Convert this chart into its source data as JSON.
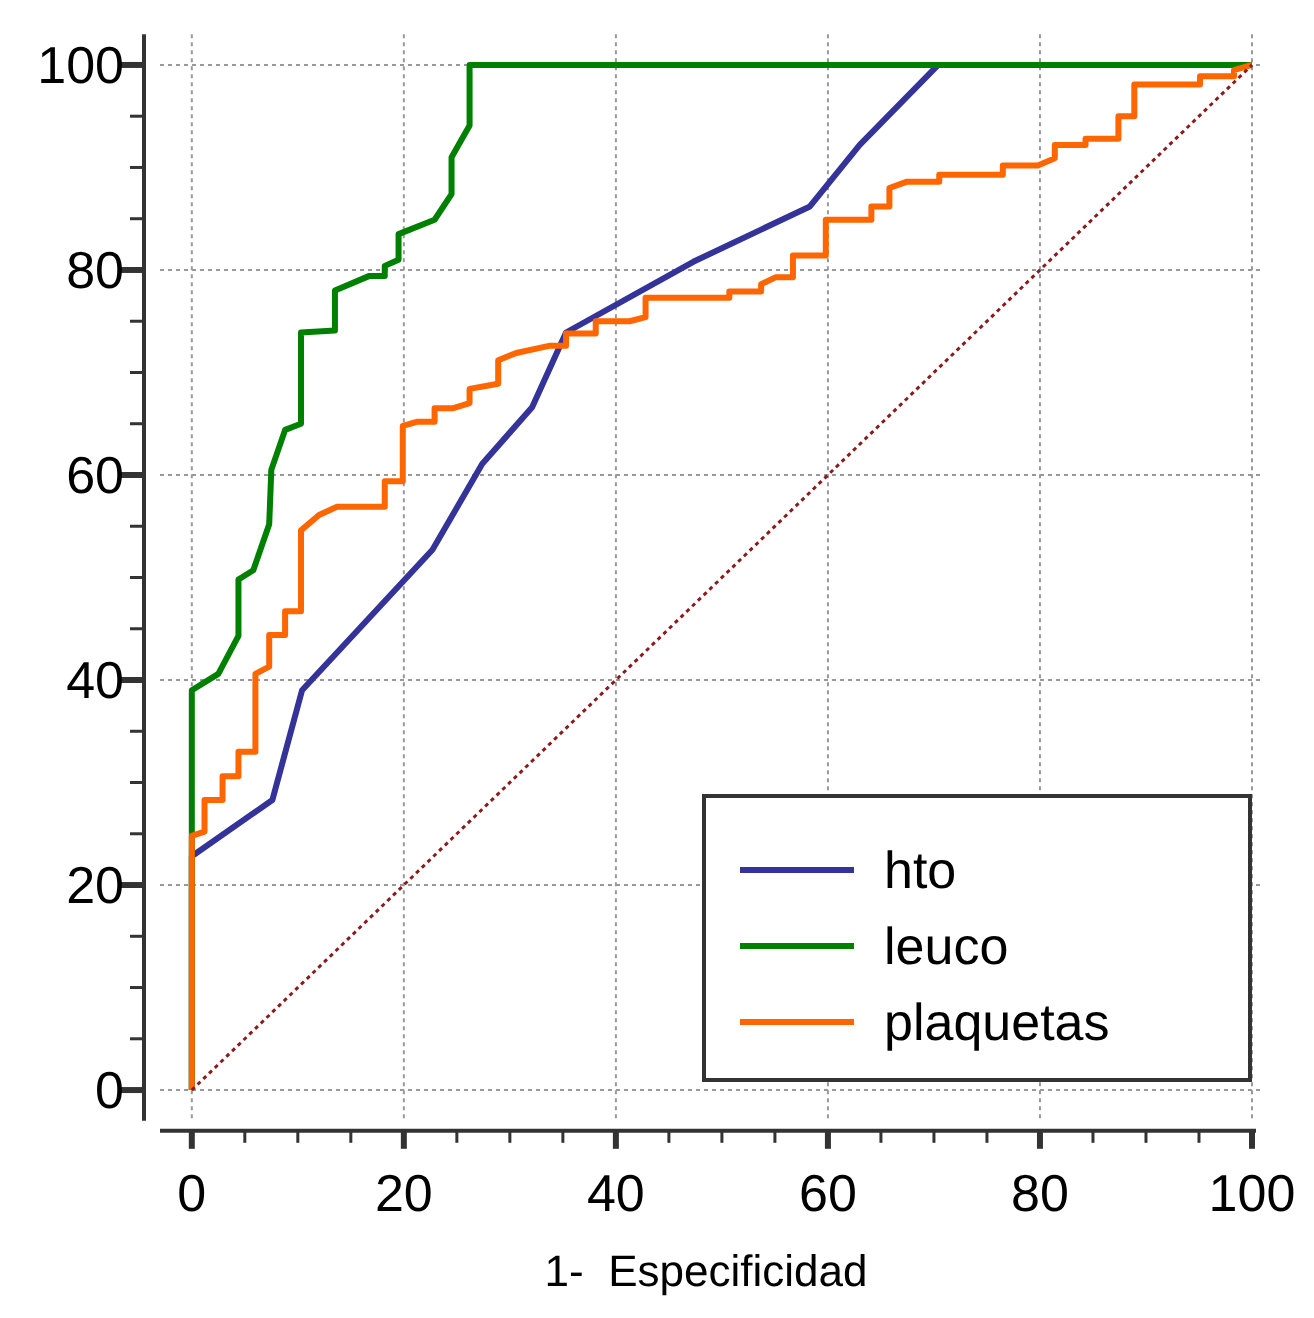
{
  "chart_data": {
    "type": "line",
    "xlabel": "1-  Especificidad",
    "xlim": [
      -3,
      100
    ],
    "ylim": [
      -3,
      103
    ],
    "xticks": [
      0,
      {
        "value": 5,
        "label": null
      },
      {
        "value": 10,
        "label": null
      },
      {
        "value": 15,
        "label": null
      },
      20,
      {
        "value": 25,
        "label": null
      },
      {
        "value": 30,
        "label": null
      },
      {
        "value": 35,
        "label": null
      },
      40,
      {
        "value": 45,
        "label": null
      },
      {
        "value": 50,
        "label": null
      },
      {
        "value": 55,
        "label": null
      },
      60,
      {
        "value": 65,
        "label": null
      },
      {
        "value": 70,
        "label": null
      },
      {
        "value": 75,
        "label": null
      },
      80,
      {
        "value": 85,
        "label": null
      },
      {
        "value": 90,
        "label": null
      },
      {
        "value": 95,
        "label": null
      },
      100
    ],
    "yticks": [
      0,
      {
        "value": 5,
        "label": null
      },
      {
        "value": 10,
        "label": null
      },
      {
        "value": 15,
        "label": null
      },
      20,
      {
        "value": 25,
        "label": null
      },
      {
        "value": 30,
        "label": null
      },
      {
        "value": 35,
        "label": null
      },
      40,
      {
        "value": 45,
        "label": null
      },
      {
        "value": 50,
        "label": null
      },
      {
        "value": 55,
        "label": null
      },
      60,
      {
        "value": 65,
        "label": null
      },
      {
        "value": 70,
        "label": null
      },
      {
        "value": 75,
        "label": null
      },
      80,
      {
        "value": 85,
        "label": null
      },
      {
        "value": 90,
        "label": null
      },
      {
        "value": 95,
        "label": null
      },
      100
    ],
    "grid": true,
    "legend": "bottom right",
    "series": [
      {
        "name": "hto",
        "color": "#333399",
        "x": [
          0,
          0,
          7.6,
          10.4,
          22.7,
          27.4,
          32.1,
          35.3,
          47.3,
          58.3,
          63,
          70.4,
          100
        ],
        "values": [
          0,
          22.8,
          28.3,
          39,
          52.7,
          61.1,
          66.6,
          73.9,
          80.8,
          86.2,
          92.2,
          100,
          100
        ]
      },
      {
        "name": "leuco",
        "color": "#008000",
        "x": [
          0,
          0,
          2.5,
          4.4,
          4.4,
          5.8,
          7.3,
          7.5,
          8.8,
          10.3,
          10.3,
          13.5,
          13.5,
          16.7,
          18.2,
          18.2,
          19.5,
          19.5,
          22.9,
          24.5,
          24.5,
          26.2,
          26.2,
          100
        ],
        "values": [
          0,
          39,
          40.6,
          44.3,
          49.8,
          50.7,
          55.2,
          60.5,
          64.4,
          65,
          73.9,
          74.1,
          78,
          79.4,
          79.4,
          80.4,
          81,
          83.5,
          84.9,
          87.4,
          91,
          94.1,
          100,
          100
        ]
      },
      {
        "name": "plaquetas",
        "color": "#ff6600",
        "x": [
          0,
          0,
          1.2,
          1.2,
          2.9,
          2.9,
          4.4,
          4.4,
          6.0,
          6.0,
          7.3,
          7.3,
          8.8,
          8.8,
          10.3,
          10.3,
          12,
          13.7,
          18.2,
          18.2,
          19.9,
          19.9,
          21.3,
          22.9,
          22.9,
          24.6,
          26.2,
          26.2,
          28.9,
          28.9,
          30.6,
          33.7,
          35.3,
          35.3,
          38.1,
          38.1,
          41.3,
          42.8,
          42.8,
          50.7,
          50.7,
          53.7,
          53.7,
          55.1,
          56.7,
          56.7,
          59.8,
          59.8,
          64.1,
          64.1,
          65.8,
          65.8,
          67.4,
          70.5,
          70.5,
          76.5,
          76.5,
          79.8,
          81.4,
          81.4,
          84.3,
          84.3,
          87.4,
          87.4,
          88.9,
          88.9,
          95.1,
          95.1,
          98.3,
          98.3,
          100
        ],
        "values": [
          0,
          24.8,
          25.2,
          28.3,
          28.3,
          30.6,
          30.6,
          33,
          33,
          40.6,
          41.3,
          44.4,
          44.4,
          46.7,
          46.7,
          54.6,
          56.1,
          56.9,
          56.9,
          59.4,
          59.4,
          64.8,
          65.2,
          65.2,
          66.5,
          66.5,
          67,
          68.4,
          68.9,
          71.2,
          71.9,
          72.6,
          72.6,
          73.8,
          73.8,
          75,
          75,
          75.4,
          77.3,
          77.3,
          77.9,
          77.9,
          78.6,
          79.3,
          79.3,
          81.4,
          81.4,
          84.9,
          84.9,
          86.2,
          86.2,
          88,
          88.6,
          88.6,
          89.3,
          89.3,
          90.2,
          90.2,
          90.9,
          92.2,
          92.2,
          92.8,
          92.8,
          95,
          95,
          98.1,
          98.1,
          98.9,
          98.9,
          99.5,
          100
        ]
      },
      {
        "color": "#8b1a1a",
        "line_style": "dotted",
        "x": [
          0,
          100
        ],
        "values": [
          0,
          100
        ]
      }
    ]
  }
}
